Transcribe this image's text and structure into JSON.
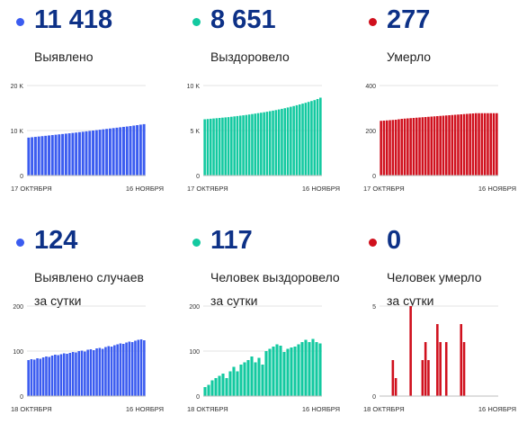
{
  "chart_data": [
    {
      "type": "bar",
      "color": "#3b5cf0",
      "big_number": "11 418",
      "label_lines": [
        "Выявлено"
      ],
      "x_labels": [
        "17 ОКТЯБРЯ",
        "16 НОЯБРЯ"
      ],
      "y_ticks": [
        {
          "value": 0,
          "label": "0"
        },
        {
          "value": 10000,
          "label": "10 K"
        },
        {
          "value": 20000,
          "label": "20 K"
        }
      ],
      "ylim": [
        0,
        20000
      ],
      "values": [
        8430,
        8510,
        8590,
        8670,
        8750,
        8830,
        8910,
        8990,
        9070,
        9150,
        9230,
        9310,
        9390,
        9470,
        9550,
        9640,
        9730,
        9820,
        9910,
        10000,
        10090,
        10180,
        10270,
        10360,
        10450,
        10540,
        10630,
        10720,
        10810,
        10900,
        10990,
        11100,
        11200,
        11310,
        11418
      ]
    },
    {
      "type": "bar",
      "color": "#13c9a0",
      "big_number": "8 651",
      "label_lines": [
        "Выздоровело"
      ],
      "x_labels": [
        "17 ОКТЯБРЯ",
        "16 НОЯБРЯ"
      ],
      "y_ticks": [
        {
          "value": 0,
          "label": "0"
        },
        {
          "value": 5000,
          "label": "5 K"
        },
        {
          "value": 10000,
          "label": "10 K"
        }
      ],
      "ylim": [
        0,
        10000
      ],
      "values": [
        6250,
        6280,
        6310,
        6340,
        6370,
        6400,
        6430,
        6460,
        6490,
        6530,
        6570,
        6610,
        6650,
        6690,
        6730,
        6780,
        6830,
        6880,
        6930,
        6980,
        7030,
        7090,
        7150,
        7210,
        7270,
        7340,
        7410,
        7480,
        7560,
        7640,
        7720,
        7810,
        7900,
        7990,
        8080,
        8180,
        8280,
        8380,
        8500,
        8651
      ]
    },
    {
      "type": "bar",
      "color": "#d0101d",
      "big_number": "277",
      "label_lines": [
        "Умерло"
      ],
      "x_labels": [
        "17 ОКТЯБРЯ",
        "16 НОЯБРЯ"
      ],
      "y_ticks": [
        {
          "value": 0,
          "label": "0"
        },
        {
          "value": 200,
          "label": "200"
        },
        {
          "value": 400,
          "label": "400"
        }
      ],
      "ylim": [
        0,
        400
      ],
      "values": [
        243,
        244,
        245,
        246,
        247,
        248,
        250,
        252,
        253,
        254,
        255,
        256,
        257,
        258,
        259,
        260,
        261,
        262,
        263,
        264,
        265,
        266,
        267,
        268,
        269,
        270,
        271,
        272,
        273,
        274,
        275,
        276,
        277,
        277,
        277,
        277,
        277,
        277,
        277,
        277
      ]
    },
    {
      "type": "bar",
      "color": "#3b5cf0",
      "big_number": "124",
      "label_lines": [
        "Выявлено случаев",
        "за сутки"
      ],
      "x_labels": [
        "18 ОКТЯБРЯ",
        "16 НОЯБРЯ"
      ],
      "y_ticks": [
        {
          "value": 0,
          "label": "0"
        },
        {
          "value": 100,
          "label": "100"
        },
        {
          "value": 200,
          "label": "200"
        }
      ],
      "ylim": [
        0,
        200
      ],
      "values": [
        80,
        82,
        81,
        84,
        83,
        86,
        88,
        87,
        90,
        92,
        91,
        93,
        95,
        94,
        96,
        98,
        97,
        100,
        101,
        99,
        103,
        104,
        102,
        106,
        107,
        105,
        109,
        111,
        110,
        113,
        115,
        117,
        116,
        119,
        121,
        120,
        123,
        125,
        126,
        124
      ]
    },
    {
      "type": "bar",
      "color": "#13c9a0",
      "big_number": "117",
      "label_lines": [
        "Человек выздоровело",
        "за сутки"
      ],
      "x_labels": [
        "18 ОКТЯБРЯ",
        "16 НОЯБРЯ"
      ],
      "y_ticks": [
        {
          "value": 0,
          "label": "0"
        },
        {
          "value": 100,
          "label": "100"
        },
        {
          "value": 200,
          "label": "200"
        }
      ],
      "ylim": [
        0,
        200
      ],
      "values": [
        20,
        25,
        35,
        40,
        45,
        50,
        40,
        55,
        65,
        55,
        70,
        75,
        80,
        88,
        75,
        85,
        70,
        100,
        105,
        110,
        115,
        112,
        98,
        105,
        108,
        110,
        115,
        120,
        125,
        120,
        127,
        120,
        117
      ]
    },
    {
      "type": "bar",
      "color": "#d0101d",
      "big_number": "0",
      "label_lines": [
        "Человек умерло",
        "за сутки"
      ],
      "x_labels": [
        "18 ОКТЯБРЯ",
        "16 НОЯБРЯ"
      ],
      "y_ticks": [
        {
          "value": 0,
          "label": "0"
        },
        {
          "value": 5,
          "label": "5"
        }
      ],
      "ylim": [
        0,
        5
      ],
      "values": [
        0,
        0,
        0,
        0,
        2,
        1,
        0,
        0,
        0,
        0,
        5,
        0,
        0,
        0,
        2,
        3,
        2,
        0,
        0,
        4,
        3,
        0,
        3,
        0,
        0,
        0,
        0,
        4,
        3,
        0,
        0,
        0,
        0,
        0,
        0,
        0,
        0,
        0,
        0,
        0
      ]
    }
  ]
}
